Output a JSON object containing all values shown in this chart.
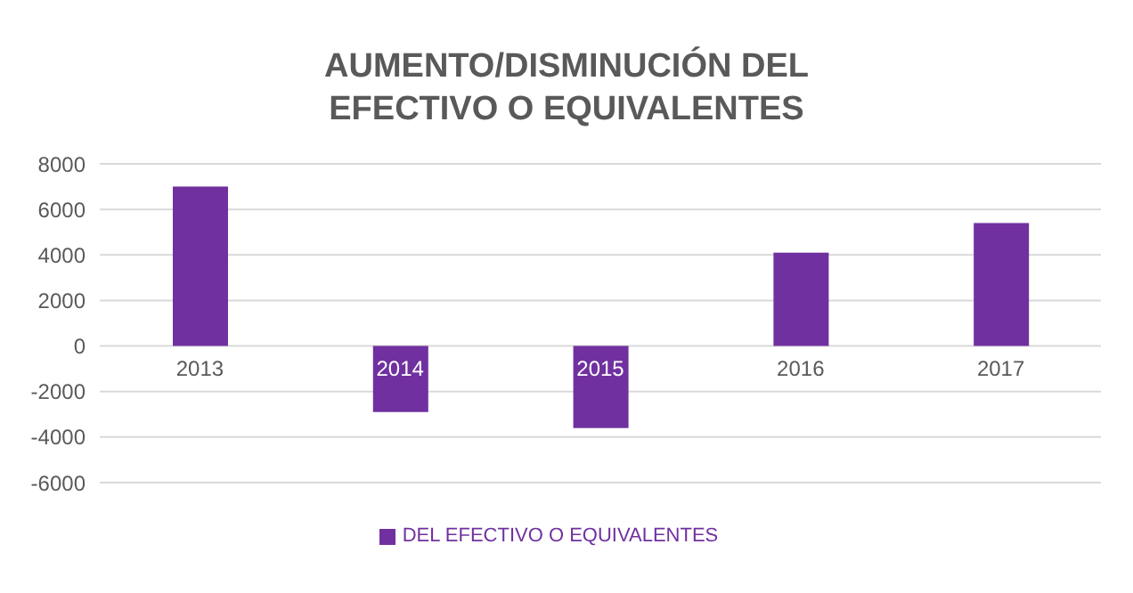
{
  "chart_data": {
    "type": "bar",
    "title": "AUMENTO/DISMINUCIÓN DEL EFECTIVO O EQUIVALENTES",
    "categories": [
      "2013",
      "2014",
      "2015",
      "2016",
      "2017"
    ],
    "series": [
      {
        "name": "DEL EFECTIVO O EQUIVALENTES",
        "color": "#7030a0",
        "values": [
          7000,
          -2900,
          -3600,
          4100,
          5400
        ]
      }
    ],
    "ylim": [
      -6000,
      8000
    ],
    "yticks": [
      -6000,
      -4000,
      -2000,
      0,
      2000,
      4000,
      6000,
      8000
    ],
    "grid": "y",
    "legend": "bottom"
  }
}
